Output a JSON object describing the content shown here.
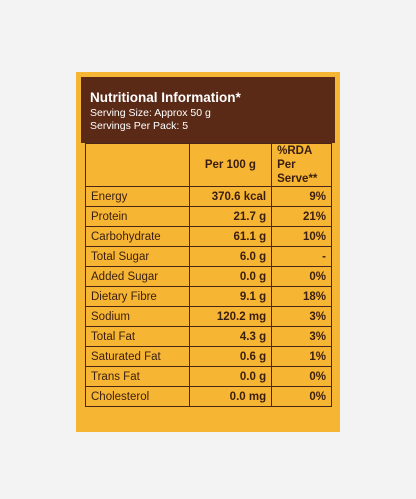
{
  "title": "Nutritional Information*",
  "serving_size": "Serving Size: Approx 50 g",
  "servings_per_pack": "Servings Per Pack: 5",
  "columns": {
    "per100": "Per 100 g",
    "rda": "%RDA Per Serve**"
  },
  "rows": [
    {
      "name": "Energy",
      "value": "370.6 kcal",
      "rda": "9%",
      "indent": false
    },
    {
      "name": "Protein",
      "value": "21.7 g",
      "rda": "21%",
      "indent": false
    },
    {
      "name": "Carbohydrate",
      "value": "61.1 g",
      "rda": "10%",
      "indent": false
    },
    {
      "name": "Total Sugar",
      "value": "6.0 g",
      "rda": "-",
      "indent": true
    },
    {
      "name": "Added Sugar",
      "value": "0.0 g",
      "rda": "0%",
      "indent": true
    },
    {
      "name": "Dietary Fibre",
      "value": "9.1 g",
      "rda": "18%",
      "indent": true
    },
    {
      "name": "Sodium",
      "value": "120.2 mg",
      "rda": "3%",
      "indent": false
    },
    {
      "name": "Total Fat",
      "value": "4.3 g",
      "rda": "3%",
      "indent": false
    },
    {
      "name": "Saturated Fat",
      "value": "0.6 g",
      "rda": "1%",
      "indent": true
    },
    {
      "name": "Trans Fat",
      "value": "0.0 g",
      "rda": "0%",
      "indent": true
    },
    {
      "name": "Cholesterol",
      "value": "0.0 mg",
      "rda": "0%",
      "indent": false
    }
  ],
  "colors": {
    "panel": "#f6b532",
    "header": "#5a2a16",
    "text": "#3a1e12",
    "background": "#f3f3f3"
  }
}
